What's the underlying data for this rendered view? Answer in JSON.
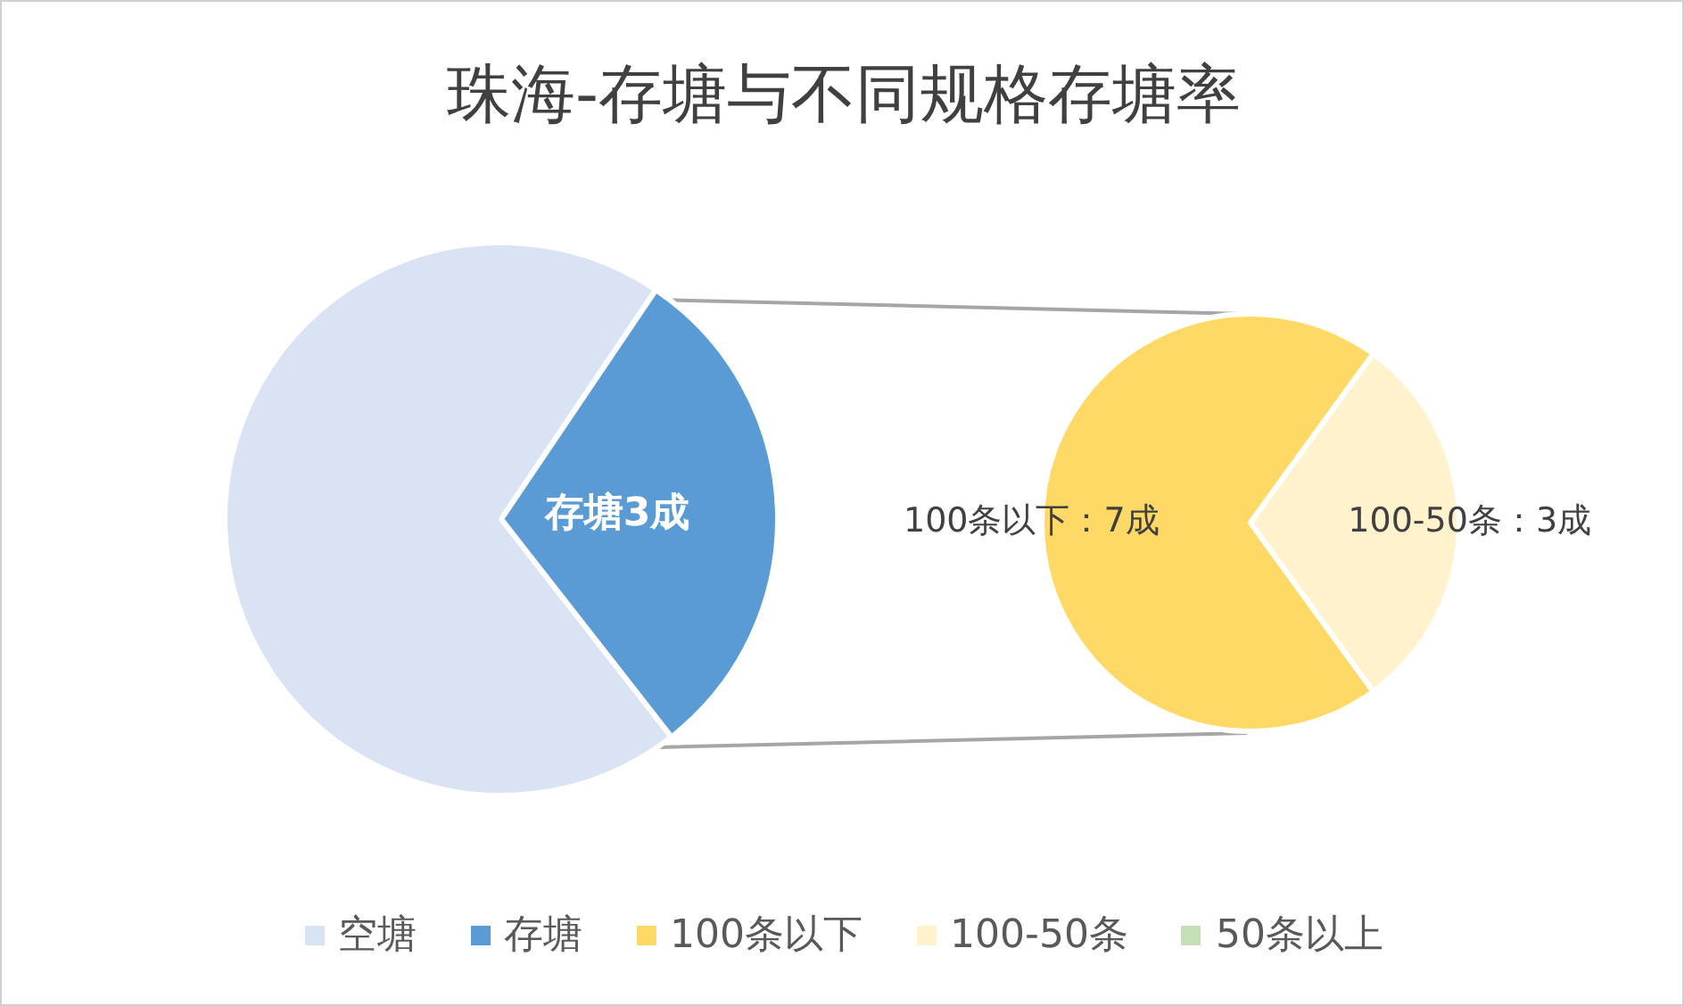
{
  "chart_data": [
    {
      "type": "pie",
      "title": "珠海-存塘与不同规格存塘率",
      "categories": [
        "空塘",
        "存塘"
      ],
      "values": [
        7,
        3
      ],
      "colors": [
        "#dae3f3",
        "#5b9bd5"
      ],
      "value_labels": [
        null,
        "存塘3成"
      ],
      "legend": "bottom"
    },
    {
      "type": "pie",
      "categories": [
        "100条以下",
        "100-50条",
        "50条以上"
      ],
      "values": [
        7,
        3,
        0
      ],
      "colors": [
        "#ffd966",
        "#fff2cc",
        "#c5e0b4"
      ],
      "value_labels": [
        "100条以下：7成",
        "100-50条：3成",
        null
      ],
      "legend": "bottom"
    }
  ]
}
